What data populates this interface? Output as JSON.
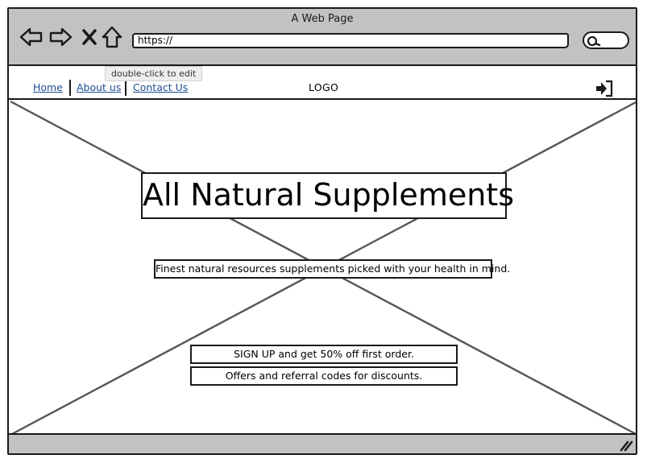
{
  "window": {
    "title": "A Web Page"
  },
  "toolbar": {
    "url": "https://",
    "icons": [
      "back-arrow-icon",
      "forward-arrow-icon",
      "close-icon",
      "home-icon",
      "search-icon"
    ]
  },
  "tooltip": {
    "text": "double-click to edit"
  },
  "navbar": {
    "links": [
      {
        "label": "Home"
      },
      {
        "label": "About us"
      },
      {
        "label": "Contact Us"
      }
    ],
    "logo": "LOGO",
    "login_icon": "sign-in-icon"
  },
  "hero": {
    "headline": "All Natural Supplements",
    "subtitle": "Finest natural resources supplements picked with your health in mind.",
    "cta_primary": "SIGN UP and get 50% off first order.",
    "cta_secondary": "Offers and referral codes for discounts."
  },
  "colors": {
    "chrome": "#c2c2c2",
    "link": "#1f4f8f",
    "stroke": "#1a1a1a"
  }
}
